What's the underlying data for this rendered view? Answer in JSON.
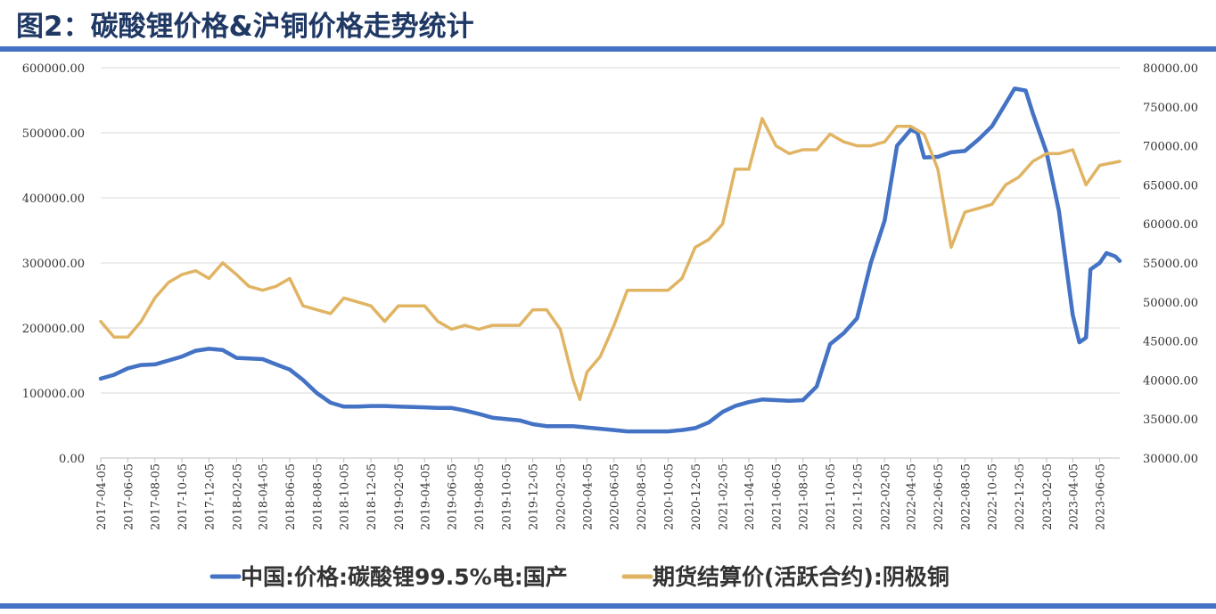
{
  "header": {
    "title": "图2：碳酸锂价格&沪铜价格走势统计"
  },
  "colors": {
    "accent": "#4472c4",
    "series_lithium": "#4472c4",
    "series_copper": "#e0b463",
    "title": "#1f3864"
  },
  "chart_data": {
    "type": "line",
    "title": "图2：碳酸锂价格&沪铜价格走势统计",
    "grid": true,
    "legend_position": "bottom",
    "left_axis": {
      "ylim": [
        0,
        600000
      ],
      "ticks": [
        "0.00",
        "100000.00",
        "200000.00",
        "300000.00",
        "400000.00",
        "500000.00",
        "600000.00"
      ]
    },
    "right_axis": {
      "ylim": [
        30000,
        80000
      ],
      "ticks": [
        "30000.00",
        "35000.00",
        "40000.00",
        "45000.00",
        "50000.00",
        "55000.00",
        "60000.00",
        "65000.00",
        "70000.00",
        "75000.00",
        "80000.00"
      ]
    },
    "x_tick_labels": [
      "2017-04-05",
      "2017-06-05",
      "2017-08-05",
      "2017-10-05",
      "2017-12-05",
      "2018-02-05",
      "2018-04-05",
      "2018-06-05",
      "2018-08-05",
      "2018-10-05",
      "2018-12-05",
      "2019-02-05",
      "2019-04-05",
      "2019-06-05",
      "2019-08-05",
      "2019-10-05",
      "2019-12-05",
      "2020-02-05",
      "2020-04-05",
      "2020-06-05",
      "2020-08-05",
      "2020-10-05",
      "2020-12-05",
      "2021-02-05",
      "2021-04-05",
      "2021-06-05",
      "2021-08-05",
      "2021-10-05",
      "2021-12-05",
      "2022-02-05",
      "2022-04-05",
      "2022-06-05",
      "2022-08-05",
      "2022-10-05",
      "2022-12-05",
      "2023-02-05",
      "2023-04-05",
      "2023-06-05"
    ],
    "x_range": [
      "2017-04-05",
      "2023-07-20"
    ],
    "series": [
      {
        "name": "中国:价格:碳酸锂99.5%电:国产",
        "axis": "left",
        "color": "#4472c4",
        "points": [
          [
            "2017-04-05",
            122000
          ],
          [
            "2017-05-05",
            128000
          ],
          [
            "2017-06-05",
            138000
          ],
          [
            "2017-07-05",
            143000
          ],
          [
            "2017-08-05",
            144000
          ],
          [
            "2017-09-05",
            150000
          ],
          [
            "2017-10-05",
            156000
          ],
          [
            "2017-11-05",
            165000
          ],
          [
            "2017-12-05",
            168000
          ],
          [
            "2018-01-05",
            166000
          ],
          [
            "2018-02-05",
            154000
          ],
          [
            "2018-03-05",
            153000
          ],
          [
            "2018-04-05",
            152000
          ],
          [
            "2018-05-05",
            144000
          ],
          [
            "2018-06-05",
            136000
          ],
          [
            "2018-07-05",
            120000
          ],
          [
            "2018-08-05",
            100000
          ],
          [
            "2018-09-05",
            85000
          ],
          [
            "2018-10-05",
            79000
          ],
          [
            "2018-11-05",
            79000
          ],
          [
            "2018-12-05",
            80000
          ],
          [
            "2019-01-05",
            80000
          ],
          [
            "2019-02-05",
            79000
          ],
          [
            "2019-04-05",
            78000
          ],
          [
            "2019-05-05",
            77000
          ],
          [
            "2019-06-05",
            77000
          ],
          [
            "2019-07-05",
            73000
          ],
          [
            "2019-08-05",
            68000
          ],
          [
            "2019-09-05",
            62000
          ],
          [
            "2019-10-05",
            60000
          ],
          [
            "2019-11-05",
            58000
          ],
          [
            "2019-12-05",
            52000
          ],
          [
            "2020-01-05",
            49000
          ],
          [
            "2020-02-05",
            49000
          ],
          [
            "2020-03-05",
            49000
          ],
          [
            "2020-04-05",
            47000
          ],
          [
            "2020-05-05",
            45000
          ],
          [
            "2020-06-05",
            43000
          ],
          [
            "2020-07-05",
            41000
          ],
          [
            "2020-08-05",
            41000
          ],
          [
            "2020-09-05",
            41000
          ],
          [
            "2020-10-05",
            41000
          ],
          [
            "2020-11-05",
            43000
          ],
          [
            "2020-12-05",
            46000
          ],
          [
            "2021-01-05",
            55000
          ],
          [
            "2021-02-05",
            71000
          ],
          [
            "2021-03-05",
            80000
          ],
          [
            "2021-04-05",
            86000
          ],
          [
            "2021-05-05",
            90000
          ],
          [
            "2021-06-05",
            89000
          ],
          [
            "2021-07-05",
            88000
          ],
          [
            "2021-08-05",
            89000
          ],
          [
            "2021-09-05",
            110000
          ],
          [
            "2021-10-05",
            175000
          ],
          [
            "2021-11-05",
            192000
          ],
          [
            "2021-12-05",
            215000
          ],
          [
            "2022-01-05",
            300000
          ],
          [
            "2022-02-05",
            365000
          ],
          [
            "2022-03-05",
            480000
          ],
          [
            "2022-04-05",
            505000
          ],
          [
            "2022-04-20",
            500000
          ],
          [
            "2022-05-05",
            462000
          ],
          [
            "2022-06-05",
            463000
          ],
          [
            "2022-07-05",
            470000
          ],
          [
            "2022-08-05",
            472000
          ],
          [
            "2022-09-05",
            490000
          ],
          [
            "2022-10-05",
            510000
          ],
          [
            "2022-11-05",
            545000
          ],
          [
            "2022-11-25",
            568000
          ],
          [
            "2022-12-20",
            565000
          ],
          [
            "2023-01-05",
            530000
          ],
          [
            "2023-02-05",
            470000
          ],
          [
            "2023-03-05",
            380000
          ],
          [
            "2023-04-05",
            220000
          ],
          [
            "2023-04-20",
            178000
          ],
          [
            "2023-05-05",
            185000
          ],
          [
            "2023-05-15",
            290000
          ],
          [
            "2023-06-05",
            300000
          ],
          [
            "2023-06-20",
            315000
          ],
          [
            "2023-07-10",
            310000
          ],
          [
            "2023-07-20",
            303000
          ]
        ]
      },
      {
        "name": "期货结算价(活跃合约):阴极铜",
        "axis": "right",
        "color": "#e0b463",
        "points": [
          [
            "2017-04-05",
            47500
          ],
          [
            "2017-05-05",
            45500
          ],
          [
            "2017-06-05",
            45500
          ],
          [
            "2017-07-05",
            47500
          ],
          [
            "2017-08-05",
            50500
          ],
          [
            "2017-09-05",
            52500
          ],
          [
            "2017-10-05",
            53500
          ],
          [
            "2017-11-05",
            54000
          ],
          [
            "2017-12-05",
            53000
          ],
          [
            "2018-01-05",
            55000
          ],
          [
            "2018-02-05",
            53500
          ],
          [
            "2018-03-05",
            52000
          ],
          [
            "2018-04-05",
            51500
          ],
          [
            "2018-05-05",
            52000
          ],
          [
            "2018-06-05",
            53000
          ],
          [
            "2018-07-05",
            49500
          ],
          [
            "2018-08-05",
            49000
          ],
          [
            "2018-09-05",
            48500
          ],
          [
            "2018-10-05",
            50500
          ],
          [
            "2018-11-05",
            50000
          ],
          [
            "2018-12-05",
            49500
          ],
          [
            "2019-01-05",
            47500
          ],
          [
            "2019-02-05",
            49500
          ],
          [
            "2019-03-05",
            49500
          ],
          [
            "2019-04-05",
            49500
          ],
          [
            "2019-05-05",
            47500
          ],
          [
            "2019-06-05",
            46500
          ],
          [
            "2019-07-05",
            47000
          ],
          [
            "2019-08-05",
            46500
          ],
          [
            "2019-09-05",
            47000
          ],
          [
            "2019-10-05",
            47000
          ],
          [
            "2019-11-05",
            47000
          ],
          [
            "2019-12-05",
            49000
          ],
          [
            "2020-01-05",
            49000
          ],
          [
            "2020-02-05",
            46500
          ],
          [
            "2020-03-05",
            40000
          ],
          [
            "2020-03-20",
            37500
          ],
          [
            "2020-04-05",
            41000
          ],
          [
            "2020-05-05",
            43000
          ],
          [
            "2020-06-05",
            47000
          ],
          [
            "2020-07-05",
            51500
          ],
          [
            "2020-08-05",
            51500
          ],
          [
            "2020-09-05",
            51500
          ],
          [
            "2020-10-05",
            51500
          ],
          [
            "2020-11-05",
            53000
          ],
          [
            "2020-12-05",
            57000
          ],
          [
            "2021-01-05",
            58000
          ],
          [
            "2021-02-05",
            60000
          ],
          [
            "2021-03-05",
            67000
          ],
          [
            "2021-04-05",
            67000
          ],
          [
            "2021-05-05",
            73500
          ],
          [
            "2021-06-05",
            70000
          ],
          [
            "2021-07-05",
            69000
          ],
          [
            "2021-08-05",
            69500
          ],
          [
            "2021-09-05",
            69500
          ],
          [
            "2021-10-05",
            71500
          ],
          [
            "2021-11-05",
            70500
          ],
          [
            "2021-12-05",
            70000
          ],
          [
            "2022-01-05",
            70000
          ],
          [
            "2022-02-05",
            70500
          ],
          [
            "2022-03-05",
            72500
          ],
          [
            "2022-04-05",
            72500
          ],
          [
            "2022-05-05",
            71500
          ],
          [
            "2022-06-05",
            67000
          ],
          [
            "2022-07-05",
            57000
          ],
          [
            "2022-08-05",
            61500
          ],
          [
            "2022-09-05",
            62000
          ],
          [
            "2022-10-05",
            62500
          ],
          [
            "2022-11-05",
            65000
          ],
          [
            "2022-12-05",
            66000
          ],
          [
            "2023-01-05",
            68000
          ],
          [
            "2023-02-05",
            69000
          ],
          [
            "2023-03-05",
            69000
          ],
          [
            "2023-04-05",
            69500
          ],
          [
            "2023-05-05",
            65000
          ],
          [
            "2023-06-05",
            67500
          ],
          [
            "2023-07-20",
            68000
          ]
        ]
      }
    ]
  }
}
